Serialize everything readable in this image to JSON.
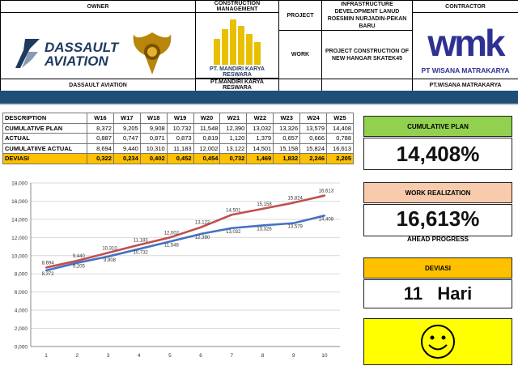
{
  "header": {
    "owner_label": "OWNER",
    "owner_logo_text_1": "DASSAULT",
    "owner_logo_text_2": "AVIATION",
    "owner_name": "DASSAULT AVIATION",
    "cm_label": "CONSTRUCTION MANAGEMENT",
    "cm_logo_text": "PT. MANDIRI KARYA RESWARA",
    "cm_name": "PT.MANDIRI KARYA RESWARA",
    "project_label": "PROJECT",
    "project_value": "INFRASTRUCTURE DEVELOPMENT LANUD ROESMIN NURJADIN-PEKAN BARU",
    "work_label": "WORK",
    "work_value": "PROJECT CONSTRUCTION OF NEW HANGAR SKATEK45",
    "contractor_label": "CONTRACTOR",
    "contractor_logo_text": "wmk",
    "contractor_logo_sub": "PT WISANA MATRAKARYA",
    "contractor_name": "PT.WISANA MATRAKARYA"
  },
  "table": {
    "header_label": "DESCRIPTION",
    "weeks": [
      "W16",
      "W17",
      "W18",
      "W19",
      "W20",
      "W21",
      "W22",
      "W23",
      "W24",
      "W25"
    ],
    "rows": [
      {
        "label": "CUMULATIVE PLAN",
        "values": [
          "8,372",
          "9,205",
          "9,908",
          "10,732",
          "11,548",
          "12,390",
          "13,032",
          "13,326",
          "13,579",
          "14,408"
        ]
      },
      {
        "label": "ACTUAL",
        "values": [
          "0,887",
          "0,747",
          "0,871",
          "0,873",
          "0,819",
          "1,120",
          "1,379",
          "0,657",
          "0,666",
          "0,788"
        ]
      },
      {
        "label": "CUMULATIIVE ACTUAL",
        "values": [
          "8,694",
          "9,440",
          "10,310",
          "11,183",
          "12,002",
          "13,122",
          "14,501",
          "15,158",
          "15,824",
          "16,613"
        ]
      },
      {
        "label": "DEVIASI",
        "values": [
          "0,322",
          "0,234",
          "0,402",
          "0,452",
          "0,454",
          "0,732",
          "1,469",
          "1,832",
          "2,246",
          "2,205"
        ]
      }
    ]
  },
  "panels": {
    "cum_plan_title": "CUMULATIVE PLAN",
    "cum_plan_value": "14,408%",
    "work_real_title": "WORK REALIZATION",
    "work_real_value": "16,613%",
    "work_real_sub": "AHEAD PROGRESS",
    "deviasi_title": "DEVIASI",
    "deviasi_value": "11   Hari",
    "smiley_icon": "smiley-icon"
  },
  "colors": {
    "header_band": "#1F4E79",
    "green": "#92D050",
    "peach": "#F8CBAD",
    "gold": "#FFC000",
    "yellow": "#FFFF00",
    "plan_line": "#4472C4",
    "actual_line": "#C0504D"
  },
  "chart_data": {
    "type": "line",
    "x": [
      1,
      2,
      3,
      4,
      5,
      6,
      7,
      8,
      9,
      10
    ],
    "series": [
      {
        "values": [
          8.372,
          9.205,
          9.908,
          10.732,
          11.548,
          12.39,
          13.032,
          13.326,
          13.579,
          14.408
        ],
        "labels": [
          "8,372",
          "9,205",
          "9,908",
          "10,732",
          "11,548",
          "12,390",
          "13,032",
          "13,326",
          "13,579",
          "14,408"
        ],
        "color": "#4472C4"
      },
      {
        "values": [
          8.694,
          9.44,
          10.31,
          11.183,
          12.002,
          13.122,
          14.501,
          15.158,
          15.824,
          16.613
        ],
        "labels": [
          "8,694",
          "9,440",
          "10,310",
          "11,183",
          "12,002",
          "13,122",
          "14,501",
          "15,158",
          "15,824",
          "16,613"
        ],
        "color": "#C0504D"
      }
    ],
    "yticks": [
      "0,000",
      "2,000",
      "4,000",
      "6,000",
      "8,000",
      "10,000",
      "12,000",
      "14,000",
      "16,000",
      "18,000"
    ],
    "ylim": [
      0,
      18
    ],
    "grid": true
  }
}
